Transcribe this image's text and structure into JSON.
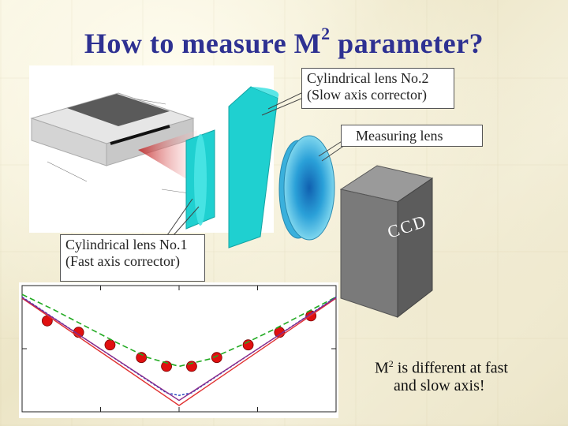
{
  "slide": {
    "title_main": "How to measure M",
    "title_sup": "2",
    "title_tail": " parameter?"
  },
  "callouts": {
    "lens2_line1": "Cylindrical lens No.2",
    "lens2_line2": "(Slow axis corrector)",
    "measuring_lens": "Measuring lens",
    "lens1_line1": "Cylindrical lens No.1",
    "lens1_line2": "(Fast axis corrector)"
  },
  "ccd_label": "CCD",
  "note": {
    "m": "M",
    "sup": "2",
    "line1_rest": " is different at fast",
    "line2": "and slow axis!"
  },
  "colors": {
    "title": "#2e3192",
    "lens": "#1fd0d0",
    "ccd": "#6e6e6e",
    "points": "#e01010",
    "dashed_fit": "#22aa22",
    "line_red": "#e03030",
    "line_blue": "#2040c0",
    "line_purple": "#8a2a8a"
  },
  "chart_data": {
    "type": "scatter",
    "title": "",
    "xlabel": "",
    "ylabel": "",
    "xlim": [
      0,
      10
    ],
    "ylim": [
      0,
      10
    ],
    "series": [
      {
        "kind": "points",
        "x": [
          0.8,
          1.8,
          2.8,
          3.8,
          4.6,
          5.4,
          6.2,
          7.2,
          8.2,
          9.2
        ],
        "y": [
          7.2,
          6.3,
          5.3,
          4.3,
          3.6,
          3.6,
          4.3,
          5.3,
          6.3,
          7.6
        ]
      },
      {
        "kind": "dashed",
        "x": [
          0,
          1,
          2,
          3,
          4,
          5,
          6,
          7,
          8,
          9,
          10
        ],
        "y": [
          9.3,
          8.1,
          6.8,
          5.5,
          4.3,
          3.6,
          4.2,
          5.3,
          6.5,
          7.8,
          9.1
        ]
      },
      {
        "kind": "line-red",
        "x": [
          0,
          5.0,
          10
        ],
        "y": [
          9.0,
          0.5,
          9.0
        ]
      },
      {
        "kind": "line-blue",
        "x": [
          0,
          4.6,
          5.0,
          5.4,
          10
        ],
        "y": [
          9.1,
          1.5,
          1.3,
          1.5,
          9.1
        ]
      },
      {
        "kind": "line-purple",
        "x": [
          0,
          5.0,
          10
        ],
        "y": [
          9.05,
          0.9,
          9.05
        ]
      }
    ]
  }
}
